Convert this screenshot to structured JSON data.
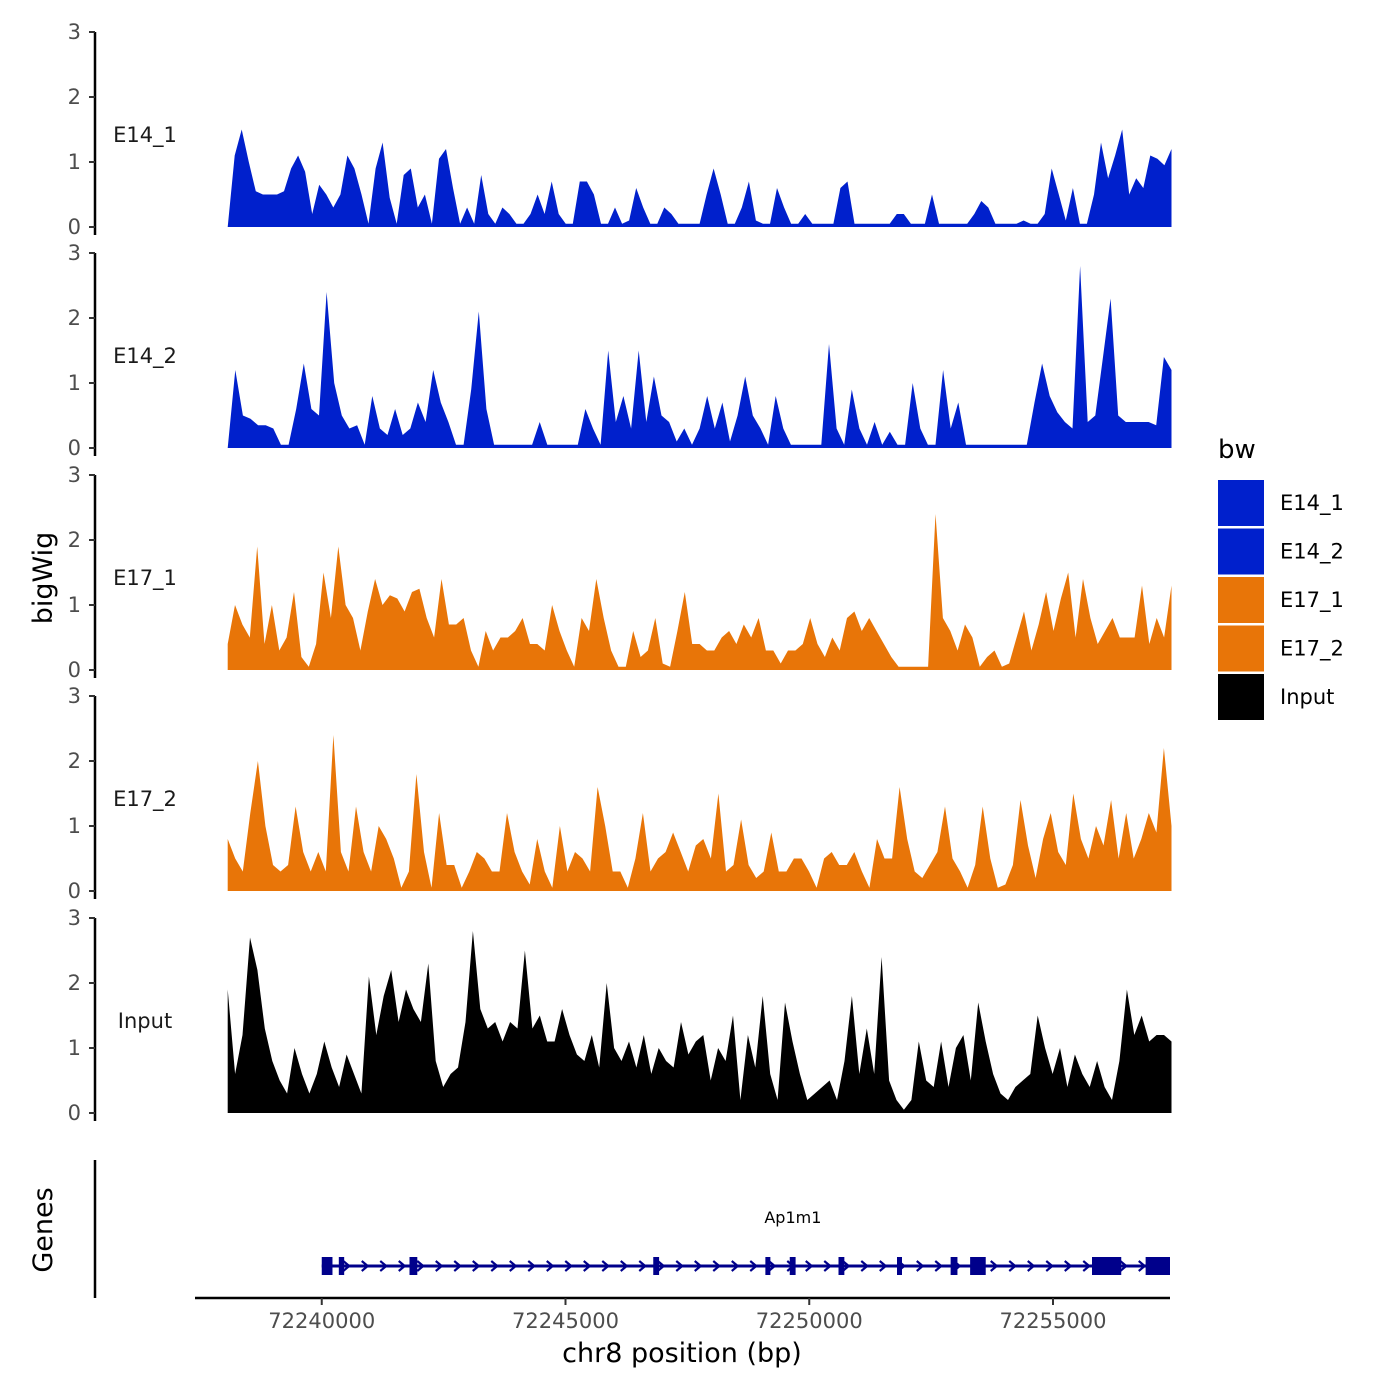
{
  "chart_data": {
    "type": "area",
    "chromosome": "chr8",
    "ylabel": "bigWig",
    "xlabel": "chr8 position (bp)",
    "ylim": [
      0,
      3
    ],
    "yticks": [
      "0",
      "1",
      "2",
      "3"
    ],
    "xlim": [
      72237400,
      72257400
    ],
    "xticks": [
      {
        "value": 72240000,
        "label": "72240000"
      },
      {
        "value": 72245000,
        "label": "72245000"
      },
      {
        "value": 72250000,
        "label": "72250000"
      },
      {
        "value": 72255000,
        "label": "72255000"
      }
    ],
    "legend": {
      "title": "bw",
      "position": "right",
      "entries": [
        {
          "label": "E14_1",
          "color": "#0020CC"
        },
        {
          "label": "E14_2",
          "color": "#0020CC"
        },
        {
          "label": "E17_1",
          "color": "#E87508"
        },
        {
          "label": "E17_2",
          "color": "#E87508"
        },
        {
          "label": "Input",
          "color": "#000000"
        }
      ]
    },
    "series": [
      {
        "name": "E14_1",
        "color": "#0020CC",
        "x_start": 72238070,
        "x_end": 72257430,
        "values": [
          0,
          1.1,
          1.5,
          1.0,
          0.55,
          0.5,
          0.5,
          0.5,
          0.55,
          0.9,
          1.1,
          0.85,
          0.2,
          0.65,
          0.5,
          0.3,
          0.5,
          1.1,
          0.9,
          0.5,
          0.05,
          0.9,
          1.3,
          0.45,
          0.05,
          0.8,
          0.9,
          0.3,
          0.5,
          0.05,
          1.05,
          1.2,
          0.6,
          0.05,
          0.3,
          0.05,
          0.8,
          0.2,
          0.05,
          0.3,
          0.2,
          0.05,
          0.05,
          0.2,
          0.5,
          0.2,
          0.7,
          0.2,
          0.05,
          0.05,
          0.7,
          0.7,
          0.5,
          0.05,
          0.05,
          0.3,
          0.05,
          0.1,
          0.6,
          0.3,
          0.05,
          0.05,
          0.3,
          0.2,
          0.05,
          0.05,
          0.05,
          0.05,
          0.5,
          0.9,
          0.5,
          0.05,
          0.05,
          0.3,
          0.7,
          0.1,
          0.05,
          0.05,
          0.6,
          0.3,
          0.05,
          0.05,
          0.2,
          0.05,
          0.05,
          0.05,
          0.05,
          0.6,
          0.7,
          0.05,
          0.05,
          0.05,
          0.05,
          0.05,
          0.05,
          0.2,
          0.2,
          0.05,
          0.05,
          0.05,
          0.5,
          0.05,
          0.05,
          0.05,
          0.05,
          0.05,
          0.2,
          0.4,
          0.3,
          0.05,
          0.05,
          0.05,
          0.05,
          0.1,
          0.05,
          0.05,
          0.2,
          0.9,
          0.5,
          0.1,
          0.6,
          0.05,
          0.05,
          0.5,
          1.3,
          0.75,
          1.1,
          1.5,
          0.5,
          0.75,
          0.6,
          1.1,
          1.05,
          0.95,
          1.2
        ]
      },
      {
        "name": "E14_2",
        "color": "#0020CC",
        "x_start": 72238070,
        "x_end": 72257430,
        "values": [
          0,
          1.2,
          0.5,
          0.45,
          0.35,
          0.35,
          0.3,
          0.05,
          0.05,
          0.6,
          1.3,
          0.6,
          0.5,
          2.4,
          1.0,
          0.5,
          0.3,
          0.35,
          0.05,
          0.8,
          0.3,
          0.2,
          0.6,
          0.2,
          0.3,
          0.7,
          0.4,
          1.2,
          0.7,
          0.4,
          0.05,
          0.05,
          0.9,
          2.1,
          0.6,
          0.05,
          0.05,
          0.05,
          0.05,
          0.05,
          0.05,
          0.4,
          0.05,
          0.05,
          0.05,
          0.05,
          0.05,
          0.6,
          0.3,
          0.05,
          1.5,
          0.4,
          0.8,
          0.3,
          1.5,
          0.4,
          1.1,
          0.5,
          0.4,
          0.1,
          0.3,
          0.05,
          0.3,
          0.8,
          0.3,
          0.7,
          0.1,
          0.5,
          1.1,
          0.5,
          0.3,
          0.05,
          0.8,
          0.3,
          0.05,
          0.05,
          0.05,
          0.05,
          0.05,
          1.6,
          0.3,
          0.05,
          0.9,
          0.3,
          0.05,
          0.4,
          0.05,
          0.25,
          0.05,
          0.05,
          1.0,
          0.3,
          0.05,
          0.05,
          1.2,
          0.3,
          0.7,
          0.05,
          0.05,
          0.05,
          0.05,
          0.05,
          0.05,
          0.05,
          0.05,
          0.05,
          0.7,
          1.3,
          0.8,
          0.55,
          0.4,
          0.3,
          2.8,
          0.4,
          0.5,
          1.4,
          2.3,
          0.5,
          0.4,
          0.4,
          0.4,
          0.4,
          0.35,
          1.4,
          1.2
        ]
      },
      {
        "name": "E17_1",
        "color": "#E87508",
        "x_start": 72238070,
        "x_end": 72257430,
        "values": [
          0.4,
          1.0,
          0.7,
          0.5,
          1.9,
          0.4,
          1.0,
          0.3,
          0.5,
          1.2,
          0.2,
          0.05,
          0.4,
          1.5,
          0.8,
          1.9,
          1.0,
          0.8,
          0.3,
          0.9,
          1.4,
          1.0,
          1.15,
          1.1,
          0.9,
          1.2,
          1.25,
          0.8,
          0.5,
          1.4,
          0.7,
          0.7,
          0.8,
          0.3,
          0.05,
          0.6,
          0.3,
          0.5,
          0.5,
          0.6,
          0.8,
          0.4,
          0.4,
          0.3,
          1.0,
          0.6,
          0.3,
          0.05,
          0.8,
          0.6,
          1.4,
          0.8,
          0.3,
          0.05,
          0.05,
          0.6,
          0.2,
          0.3,
          0.8,
          0.1,
          0.05,
          0.6,
          1.2,
          0.4,
          0.4,
          0.3,
          0.3,
          0.5,
          0.6,
          0.4,
          0.7,
          0.5,
          0.8,
          0.3,
          0.3,
          0.1,
          0.3,
          0.3,
          0.4,
          0.8,
          0.4,
          0.2,
          0.5,
          0.3,
          0.8,
          0.9,
          0.6,
          0.8,
          0.6,
          0.4,
          0.2,
          0.05,
          0.05,
          0.05,
          0.05,
          0.05,
          2.4,
          0.8,
          0.6,
          0.3,
          0.7,
          0.5,
          0.05,
          0.2,
          0.3,
          0.05,
          0.1,
          0.5,
          0.9,
          0.3,
          0.7,
          1.2,
          0.6,
          1.1,
          1.5,
          0.5,
          1.4,
          0.8,
          0.4,
          0.6,
          0.8,
          0.5,
          0.5,
          0.5,
          1.3,
          0.4,
          0.8,
          0.5,
          1.3
        ]
      },
      {
        "name": "E17_2",
        "color": "#E87508",
        "x_start": 72238070,
        "x_end": 72257430,
        "values": [
          0.8,
          0.5,
          0.3,
          1.2,
          2.0,
          1.0,
          0.4,
          0.3,
          0.4,
          1.3,
          0.6,
          0.3,
          0.6,
          0.3,
          2.4,
          0.6,
          0.3,
          1.3,
          0.6,
          0.3,
          1.0,
          0.8,
          0.5,
          0.05,
          0.3,
          1.8,
          0.6,
          0.05,
          1.2,
          0.4,
          0.4,
          0.05,
          0.3,
          0.6,
          0.5,
          0.3,
          0.3,
          1.2,
          0.6,
          0.3,
          0.1,
          0.8,
          0.3,
          0.05,
          1.0,
          0.3,
          0.6,
          0.5,
          0.3,
          1.6,
          1.0,
          0.3,
          0.3,
          0.05,
          0.5,
          1.2,
          0.3,
          0.5,
          0.6,
          0.9,
          0.6,
          0.3,
          0.7,
          0.8,
          0.5,
          1.5,
          0.3,
          0.4,
          1.1,
          0.4,
          0.2,
          0.3,
          0.9,
          0.3,
          0.3,
          0.5,
          0.5,
          0.3,
          0.05,
          0.5,
          0.6,
          0.4,
          0.4,
          0.6,
          0.3,
          0.05,
          0.8,
          0.5,
          0.5,
          1.6,
          0.8,
          0.3,
          0.2,
          0.4,
          0.6,
          1.3,
          0.5,
          0.3,
          0.05,
          0.4,
          1.3,
          0.5,
          0.05,
          0.1,
          0.4,
          1.4,
          0.7,
          0.2,
          0.8,
          1.2,
          0.6,
          0.4,
          1.5,
          0.8,
          0.5,
          1.0,
          0.7,
          1.4,
          0.5,
          1.2,
          0.5,
          0.8,
          1.2,
          0.9,
          2.2,
          1.0
        ]
      },
      {
        "name": "Input",
        "color": "#000000",
        "x_start": 72238070,
        "x_end": 72257430,
        "values": [
          1.9,
          0.6,
          1.2,
          2.7,
          2.2,
          1.3,
          0.8,
          0.5,
          0.3,
          1.0,
          0.6,
          0.3,
          0.6,
          1.1,
          0.7,
          0.4,
          0.9,
          0.6,
          0.3,
          2.1,
          1.2,
          1.8,
          2.2,
          1.4,
          1.9,
          1.6,
          1.4,
          2.3,
          0.8,
          0.4,
          0.6,
          0.7,
          1.4,
          2.8,
          1.6,
          1.3,
          1.4,
          1.1,
          1.4,
          1.3,
          2.5,
          1.3,
          1.5,
          1.1,
          1.1,
          1.6,
          1.2,
          0.9,
          0.8,
          1.2,
          0.7,
          2.0,
          1.0,
          0.8,
          1.1,
          0.7,
          1.2,
          0.6,
          1.0,
          0.8,
          0.7,
          1.4,
          0.9,
          1.1,
          1.2,
          0.5,
          1.0,
          0.8,
          1.5,
          0.2,
          1.2,
          0.7,
          1.8,
          0.6,
          0.2,
          1.7,
          1.1,
          0.6,
          0.2,
          0.3,
          0.4,
          0.5,
          0.2,
          0.8,
          1.8,
          0.6,
          1.3,
          0.6,
          2.4,
          0.5,
          0.2,
          0.05,
          0.2,
          1.1,
          0.5,
          0.4,
          1.1,
          0.4,
          1.0,
          1.2,
          0.5,
          1.7,
          1.1,
          0.6,
          0.3,
          0.2,
          0.4,
          0.5,
          0.6,
          1.5,
          1.0,
          0.6,
          1.0,
          0.4,
          0.9,
          0.6,
          0.4,
          0.8,
          0.4,
          0.2,
          0.8,
          1.9,
          1.2,
          1.5,
          1.1,
          1.2,
          1.2,
          1.1
        ]
      }
    ],
    "genes_track": {
      "ylabel": "Genes",
      "gene": {
        "name": "Ap1m1",
        "strand": "+",
        "start": 72240000,
        "end": 72257400
      },
      "exons": [
        [
          72240000,
          72240220
        ],
        [
          72240350,
          72240460
        ],
        [
          72241800,
          72241960
        ],
        [
          72246800,
          72246920
        ],
        [
          72249100,
          72249160
        ],
        [
          72249600,
          72249720
        ],
        [
          72250600,
          72250720
        ],
        [
          72251800,
          72251860
        ],
        [
          72252900,
          72253040
        ],
        [
          72253300,
          72253620
        ],
        [
          72255800,
          72256400
        ],
        [
          72256900,
          72257400
        ]
      ]
    }
  }
}
